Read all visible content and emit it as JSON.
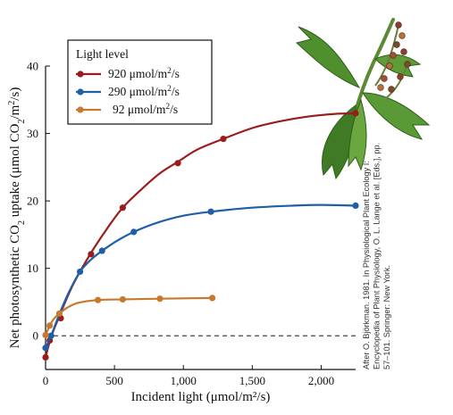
{
  "chart_data": {
    "type": "line",
    "xlabel": "Incident light (μmol/m²/s)",
    "ylabel_parts": [
      "Net photosynthetic CO",
      "2",
      " uptake (μmol CO",
      "2",
      "/m",
      "2",
      "/s)"
    ],
    "xlim": [
      0,
      2250
    ],
    "ylim": [
      -5,
      40
    ],
    "xticks": [
      0,
      500,
      1000,
      1500,
      2000
    ],
    "xtick_labels": [
      "0",
      "500",
      "1,000",
      "1,500",
      "2,000"
    ],
    "yticks": [
      0,
      10,
      20,
      30,
      40
    ],
    "ytick_labels": [
      "0",
      "10",
      "20",
      "30",
      "40"
    ],
    "reference_line": {
      "y": 0,
      "style": "dashed"
    },
    "legend": {
      "title": "Light level",
      "placement": "top-left"
    },
    "series": [
      {
        "name": "920 μmol/m²/s",
        "name_parts": [
          "920 μmol/m",
          "2",
          "/s"
        ],
        "color": "#9b1c1c",
        "points": [
          [
            0,
            -3.2
          ],
          [
            30,
            -0.7
          ],
          [
            110,
            2.6
          ],
          [
            330,
            12.1
          ],
          [
            560,
            19.0
          ],
          [
            960,
            25.6
          ],
          [
            1290,
            29.2
          ],
          [
            2250,
            33.0
          ]
        ],
        "curve": [
          [
            0,
            -3.2
          ],
          [
            40,
            -0.2
          ],
          [
            100,
            2.9
          ],
          [
            200,
            7.6
          ],
          [
            330,
            12.3
          ],
          [
            450,
            16.0
          ],
          [
            560,
            19.0
          ],
          [
            700,
            21.8
          ],
          [
            830,
            24.1
          ],
          [
            960,
            25.8
          ],
          [
            1100,
            27.6
          ],
          [
            1290,
            29.2
          ],
          [
            1500,
            30.8
          ],
          [
            1700,
            31.8
          ],
          [
            1900,
            32.5
          ],
          [
            2100,
            32.9
          ],
          [
            2250,
            33.0
          ]
        ]
      },
      {
        "name": "290 μmol/m²/s",
        "name_parts": [
          "290 μmol/m",
          "2",
          "/s"
        ],
        "color": "#1f5ea8",
        "points": [
          [
            0,
            -1.8
          ],
          [
            40,
            0.0
          ],
          [
            250,
            9.5
          ],
          [
            410,
            12.6
          ],
          [
            640,
            15.4
          ],
          [
            1200,
            18.4
          ],
          [
            2250,
            19.3
          ]
        ],
        "curve": [
          [
            0,
            -1.8
          ],
          [
            40,
            0.0
          ],
          [
            100,
            3.2
          ],
          [
            170,
            6.5
          ],
          [
            250,
            9.5
          ],
          [
            330,
            11.3
          ],
          [
            410,
            12.6
          ],
          [
            520,
            14.1
          ],
          [
            640,
            15.4
          ],
          [
            800,
            16.7
          ],
          [
            1000,
            17.8
          ],
          [
            1200,
            18.4
          ],
          [
            1500,
            19.0
          ],
          [
            1800,
            19.3
          ],
          [
            2000,
            19.4
          ],
          [
            2250,
            19.3
          ]
        ]
      },
      {
        "name": "92 μmol/m²/s",
        "name_parts": [
          "92 μmol/m",
          "2",
          "/s"
        ],
        "color": "#c77a2d",
        "points": [
          [
            0,
            0.1
          ],
          [
            30,
            1.5
          ],
          [
            100,
            3.3
          ],
          [
            380,
            5.3
          ],
          [
            560,
            5.4
          ],
          [
            830,
            5.5
          ],
          [
            1210,
            5.6
          ]
        ],
        "curve": [
          [
            0,
            0.1
          ],
          [
            30,
            1.5
          ],
          [
            60,
            2.5
          ],
          [
            100,
            3.3
          ],
          [
            160,
            4.2
          ],
          [
            240,
            4.9
          ],
          [
            380,
            5.3
          ],
          [
            560,
            5.4
          ],
          [
            830,
            5.5
          ],
          [
            1210,
            5.6
          ]
        ]
      }
    ],
    "source_credit": [
      "After O. Björkman. 1981. In Physiological Plant Ecology I:",
      "Encyclopedia of Plant Physiology, O. L. Lange et al. [Eds.], pp.",
      "57–101. Springer: New York."
    ]
  }
}
